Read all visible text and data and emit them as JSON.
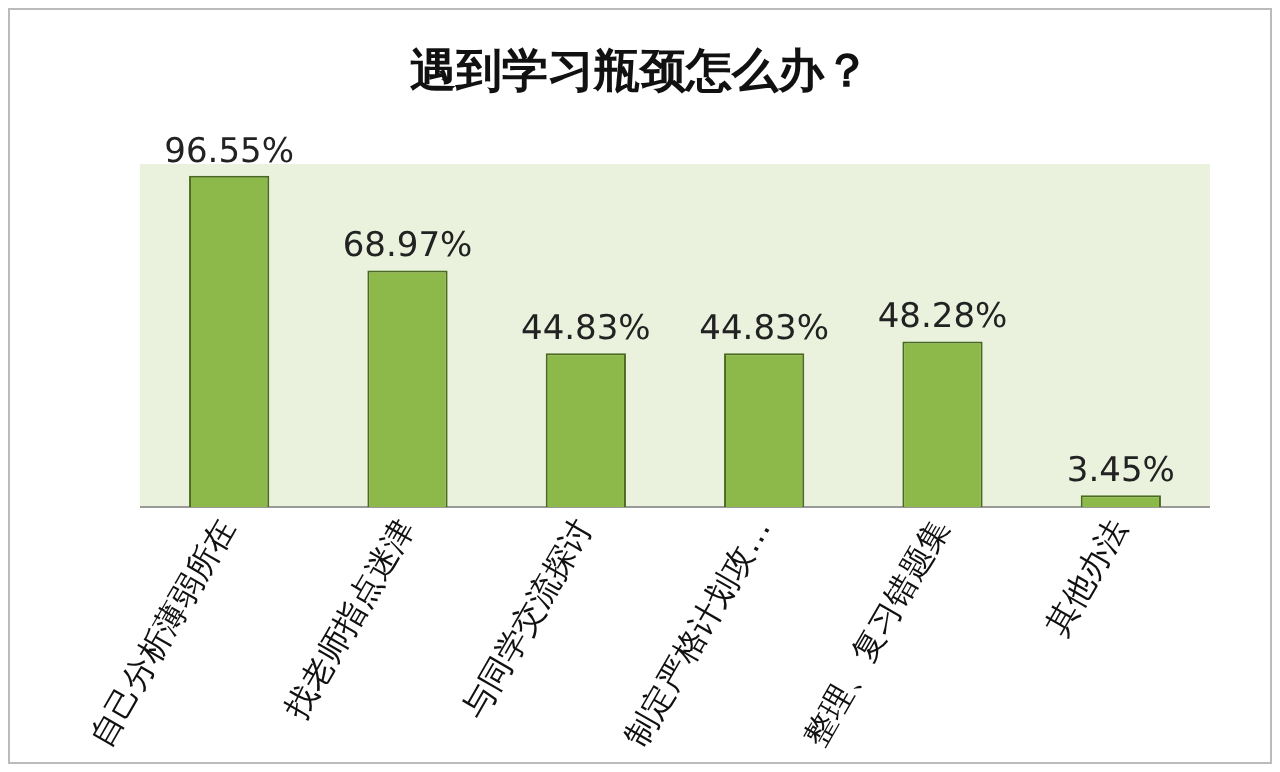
{
  "chart_data": {
    "type": "bar",
    "title": "遇到学习瓶颈怎么办？",
    "categories": [
      "自己分析薄弱所在",
      "找老师指点迷津",
      "与同学交流探讨",
      "制定严格计划攻…",
      "整理、复习错题集",
      "其他办法"
    ],
    "values": [
      96.55,
      68.97,
      44.83,
      44.83,
      48.28,
      3.45
    ],
    "value_labels": [
      "96.55%",
      "68.97%",
      "44.83%",
      "44.83%",
      "48.28%",
      "3.45%"
    ],
    "color": "#8db84a",
    "grid": false,
    "legend": false
  }
}
